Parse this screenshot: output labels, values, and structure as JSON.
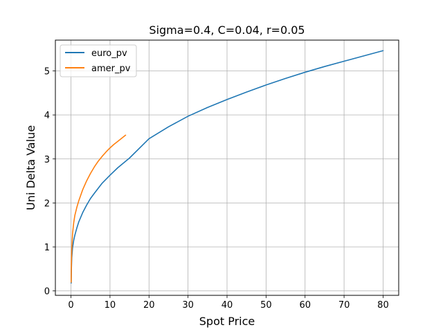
{
  "chart_data": {
    "type": "line",
    "title": "Sigma=0.4, C=0.04, r=0.05",
    "xlabel": "Spot Price",
    "ylabel": "Uni Delta Value",
    "xlim": [
      -4,
      84
    ],
    "ylim": [
      -0.1,
      5.7
    ],
    "xticks": [
      0,
      10,
      20,
      30,
      40,
      50,
      60,
      70,
      80
    ],
    "yticks": [
      0,
      1,
      2,
      3,
      4,
      5
    ],
    "grid": true,
    "legend_position": "top-left",
    "series": [
      {
        "name": "euro_pv",
        "color": "#1f77b4",
        "x": [
          0.05,
          0.1,
          0.2,
          0.4,
          0.7,
          1,
          1.5,
          2,
          3,
          4,
          5,
          6,
          8,
          10,
          12,
          15,
          20,
          25,
          30,
          35,
          40,
          45,
          50,
          55,
          60,
          65,
          70,
          75,
          80
        ],
        "y": [
          0.18,
          0.48,
          0.75,
          0.98,
          1.15,
          1.27,
          1.43,
          1.57,
          1.78,
          1.95,
          2.1,
          2.22,
          2.45,
          2.63,
          2.8,
          3.02,
          3.46,
          3.73,
          3.97,
          4.17,
          4.35,
          4.52,
          4.68,
          4.83,
          4.97,
          5.1,
          5.22,
          5.34,
          5.46
        ]
      },
      {
        "name": "amer_pv",
        "color": "#ff7f0e",
        "x": [
          0.05,
          0.1,
          0.2,
          0.4,
          0.7,
          1,
          1.5,
          2,
          3,
          4,
          5,
          6,
          7,
          8,
          9,
          10,
          11,
          12,
          13,
          14
        ],
        "y": [
          0.2,
          0.6,
          0.95,
          1.3,
          1.55,
          1.72,
          1.9,
          2.05,
          2.3,
          2.5,
          2.67,
          2.82,
          2.95,
          3.06,
          3.16,
          3.25,
          3.33,
          3.4,
          3.47,
          3.54
        ]
      }
    ]
  }
}
